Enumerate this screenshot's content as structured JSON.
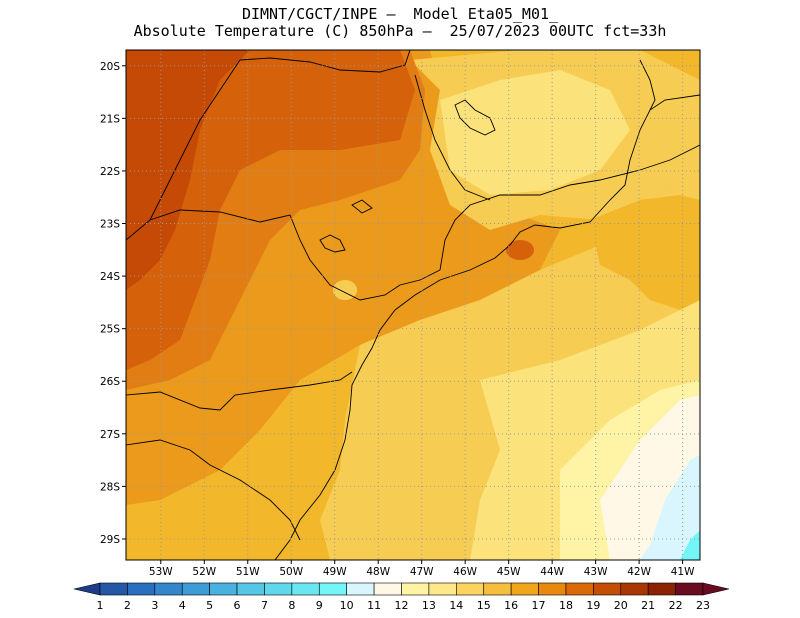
{
  "title": {
    "line1": "DIMNT/CGCT/INPE –  Model Eta05_M01_",
    "line2": "Absolute Temperature (C) 850hPa –  25/07/2023 00UTC fct=33h"
  },
  "axes": {
    "lat_labels": [
      "20S",
      "21S",
      "22S",
      "23S",
      "24S",
      "25S",
      "26S",
      "27S",
      "28S",
      "29S"
    ],
    "lon_labels": [
      "53W",
      "52W",
      "51W",
      "50W",
      "49W",
      "48W",
      "47W",
      "46W",
      "45W",
      "44W",
      "43W",
      "42W",
      "41W"
    ],
    "lon_range": [
      -53.8,
      -40.6
    ],
    "lat_range": [
      -29.4,
      -19.7
    ],
    "grid": true
  },
  "colorbar": {
    "labels": [
      "1",
      "2",
      "3",
      "4",
      "5",
      "6",
      "7",
      "8",
      "9",
      "10",
      "11",
      "12",
      "13",
      "14",
      "15",
      "16",
      "17",
      "18",
      "19",
      "20",
      "21",
      "22",
      "23"
    ],
    "colors": [
      "#1f3c88",
      "#2457a8",
      "#2a6fbf",
      "#3385cc",
      "#3d9bd6",
      "#48b1df",
      "#55c6e6",
      "#5fd7ec",
      "#6ae6f2",
      "#74f5f8",
      "#d9f6ff",
      "#fff8e6",
      "#fff3a6",
      "#ffe88a",
      "#fbd45f",
      "#f5be3c",
      "#f0a51b",
      "#e8890e",
      "#d96a07",
      "#c44e04",
      "#a93703",
      "#8c2202",
      "#6a0c20"
    ]
  },
  "map_fields": {
    "levels": [
      {
        "value": 15,
        "color": "#f7cc52"
      },
      {
        "value": 16,
        "color": "#f2b72a"
      },
      {
        "value": 17,
        "color": "#eb9a1c"
      },
      {
        "value": 18,
        "color": "#e17d12"
      },
      {
        "value": 19,
        "color": "#d5620b"
      },
      {
        "value": 20,
        "color": "#c44a05"
      }
    ],
    "cool_levels": [
      {
        "value": 14,
        "color": "#fbe27a"
      },
      {
        "value": 13,
        "color": "#fff3a6"
      },
      {
        "value": 12,
        "color": "#fff8e6"
      },
      {
        "value": 11,
        "color": "#d9f6ff"
      },
      {
        "value": 10,
        "color": "#74f5f8"
      }
    ]
  }
}
